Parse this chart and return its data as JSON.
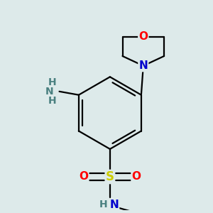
{
  "background_color": "#ddeaea",
  "atom_colors": {
    "C": "#000000",
    "N_morph": "#0000cc",
    "N_nh2": "#4a8080",
    "N_sulfonamide": "#0000cc",
    "O_morph": "#ff0000",
    "O_sulfonyl": "#ff0000",
    "S": "#cccc00"
  },
  "bond_color": "#000000",
  "bond_width": 1.6,
  "figsize": [
    3.0,
    3.0
  ],
  "dpi": 100,
  "xlim": [
    -1.3,
    1.3
  ],
  "ylim": [
    -1.45,
    1.55
  ]
}
